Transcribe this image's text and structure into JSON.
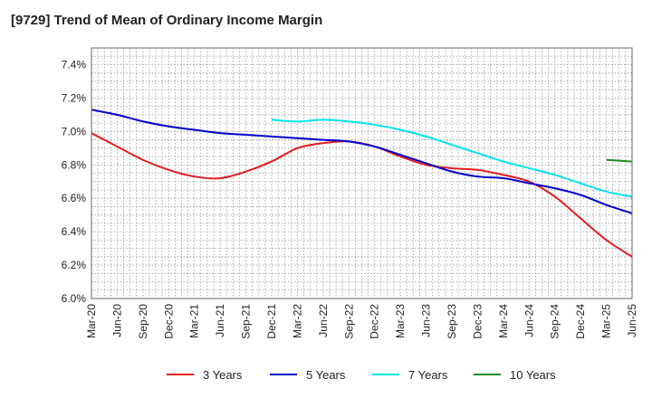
{
  "chart_data": {
    "type": "line",
    "title": "[9729]  Trend of Mean of Ordinary Income Margin",
    "xlabel": "",
    "ylabel": "",
    "ylim": [
      6.0,
      7.5
    ],
    "x_ticks": [
      "Mar-20",
      "Jun-20",
      "Sep-20",
      "Dec-20",
      "Mar-21",
      "Jun-21",
      "Sep-21",
      "Dec-21",
      "Mar-22",
      "Jun-22",
      "Sep-22",
      "Dec-22",
      "Mar-23",
      "Jun-23",
      "Sep-23",
      "Dec-23",
      "Mar-24",
      "Jun-24",
      "Sep-24",
      "Dec-24",
      "Mar-25",
      "Jun-25"
    ],
    "y_ticks": [
      "6.0%",
      "6.2%",
      "6.4%",
      "6.6%",
      "6.8%",
      "7.0%",
      "7.2%",
      "7.4%"
    ],
    "y_tick_values": [
      6.0,
      6.2,
      6.4,
      6.6,
      6.8,
      7.0,
      7.2,
      7.4
    ],
    "grid": true,
    "legend_position": "bottom",
    "series": [
      {
        "name": "3 Years",
        "color": "#e31a1c",
        "values": [
          6.99,
          6.91,
          6.83,
          6.77,
          6.73,
          6.72,
          6.76,
          6.82,
          6.9,
          6.93,
          6.94,
          6.91,
          6.85,
          6.8,
          6.78,
          6.77,
          6.74,
          6.7,
          6.61,
          6.48,
          6.35,
          6.25
        ]
      },
      {
        "name": "5 Years",
        "color": "#0000cc",
        "values": [
          7.13,
          7.1,
          7.06,
          7.03,
          7.01,
          6.99,
          6.98,
          6.97,
          6.96,
          6.95,
          6.94,
          6.91,
          6.86,
          6.81,
          6.76,
          6.73,
          6.72,
          6.69,
          6.66,
          6.62,
          6.56,
          6.51
        ]
      },
      {
        "name": "7 Years",
        "color": "#00e5ee",
        "values": [
          null,
          null,
          null,
          null,
          null,
          null,
          null,
          7.07,
          7.06,
          7.07,
          7.06,
          7.04,
          7.01,
          6.97,
          6.92,
          6.87,
          6.82,
          6.78,
          6.74,
          6.69,
          6.64,
          6.61
        ]
      },
      {
        "name": "10 Years",
        "color": "#228b22",
        "values": [
          null,
          null,
          null,
          null,
          null,
          null,
          null,
          null,
          null,
          null,
          null,
          null,
          null,
          null,
          null,
          null,
          null,
          null,
          null,
          null,
          6.83,
          6.82
        ]
      }
    ]
  }
}
